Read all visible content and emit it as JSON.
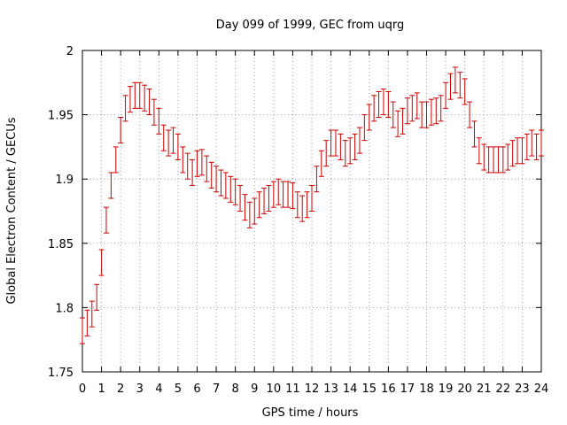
{
  "chart_data": {
    "type": "scatter",
    "title": "Day 099 of 1999, GEC from uqrg",
    "xlabel": "GPS time / hours",
    "ylabel": "Global Electron Content / GECUs",
    "xlim": [
      0,
      24
    ],
    "ylim": [
      1.75,
      2.0
    ],
    "xticks": [
      "0",
      "1",
      "2",
      "3",
      "4",
      "5",
      "6",
      "7",
      "8",
      "9",
      "10",
      "11",
      "12",
      "13",
      "14",
      "15",
      "16",
      "17",
      "18",
      "19",
      "20",
      "21",
      "22",
      "23",
      "24"
    ],
    "yticks": [
      "1.75",
      "1.8",
      "1.85",
      "1.9",
      "1.95",
      "2"
    ],
    "grid": true,
    "error_bar_halfwidth": 0.01,
    "series": [
      {
        "name": "GEC",
        "color": "#cc0000",
        "x": [
          0.0,
          0.25,
          0.5,
          0.75,
          1.0,
          1.25,
          1.5,
          1.75,
          2.0,
          2.25,
          2.5,
          2.75,
          3.0,
          3.25,
          3.5,
          3.75,
          4.0,
          4.25,
          4.5,
          4.75,
          5.0,
          5.25,
          5.5,
          5.75,
          6.0,
          6.25,
          6.5,
          6.75,
          7.0,
          7.25,
          7.5,
          7.75,
          8.0,
          8.25,
          8.5,
          8.75,
          9.0,
          9.25,
          9.5,
          9.75,
          10.0,
          10.25,
          10.5,
          10.75,
          11.0,
          11.25,
          11.5,
          11.75,
          12.0,
          12.25,
          12.5,
          12.75,
          13.0,
          13.25,
          13.5,
          13.75,
          14.0,
          14.25,
          14.5,
          14.75,
          15.0,
          15.25,
          15.5,
          15.75,
          16.0,
          16.25,
          16.5,
          16.75,
          17.0,
          17.25,
          17.5,
          17.75,
          18.0,
          18.25,
          18.5,
          18.75,
          19.0,
          19.25,
          19.5,
          19.75,
          20.0,
          20.25,
          20.5,
          20.75,
          21.0,
          21.25,
          21.5,
          21.75,
          22.0,
          22.25,
          22.5,
          22.75,
          23.0,
          23.25,
          23.5,
          23.75,
          24.0
        ],
        "values": [
          1.782,
          1.788,
          1.795,
          1.808,
          1.835,
          1.868,
          1.895,
          1.915,
          1.938,
          1.955,
          1.962,
          1.965,
          1.965,
          1.963,
          1.96,
          1.952,
          1.945,
          1.932,
          1.928,
          1.93,
          1.925,
          1.915,
          1.91,
          1.905,
          1.912,
          1.913,
          1.908,
          1.903,
          1.9,
          1.897,
          1.895,
          1.892,
          1.89,
          1.885,
          1.878,
          1.872,
          1.875,
          1.88,
          1.883,
          1.885,
          1.888,
          1.89,
          1.888,
          1.888,
          1.887,
          1.88,
          1.877,
          1.88,
          1.885,
          1.9,
          1.912,
          1.92,
          1.928,
          1.928,
          1.925,
          1.92,
          1.922,
          1.925,
          1.93,
          1.94,
          1.948,
          1.955,
          1.958,
          1.96,
          1.958,
          1.95,
          1.943,
          1.945,
          1.953,
          1.955,
          1.957,
          1.95,
          1.95,
          1.952,
          1.953,
          1.955,
          1.965,
          1.972,
          1.977,
          1.973,
          1.968,
          1.95,
          1.935,
          1.922,
          1.917,
          1.915,
          1.915,
          1.915,
          1.915,
          1.917,
          1.92,
          1.922,
          1.922,
          1.925,
          1.928,
          1.925,
          1.928
        ]
      }
    ]
  }
}
